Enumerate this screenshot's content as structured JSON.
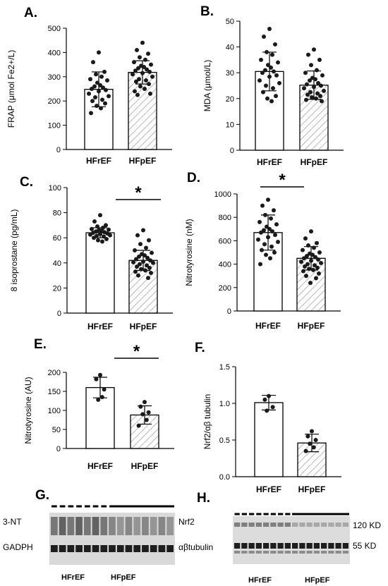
{
  "colors": {
    "ink": "#000000",
    "hatch": "#b8b8b8",
    "marker": "#1a1a1a"
  },
  "chart_data": [
    {
      "id": "A",
      "type": "bar",
      "panel_label": "A.",
      "categories": [
        "HFrEF",
        "HFpEF"
      ],
      "ylabel": "FRAP (μmol Fe2+/L)",
      "ylim": [
        0,
        500
      ],
      "yticks": [
        0,
        100,
        200,
        300,
        400,
        500
      ],
      "ytick_labels": [
        "0",
        "100",
        "200",
        "300",
        "400",
        "500"
      ],
      "series": [
        {
          "category": "HFrEF",
          "fill": "plain",
          "mean": 248,
          "sd": 72,
          "points": [
            400,
            360,
            320,
            310,
            300,
            290,
            285,
            275,
            265,
            260,
            255,
            250,
            245,
            240,
            230,
            220,
            215,
            205,
            200,
            190,
            180,
            170,
            150
          ]
        },
        {
          "category": "HFpEF",
          "fill": "hatch",
          "mean": 318,
          "sd": 48,
          "points": [
            440,
            410,
            395,
            380,
            370,
            360,
            350,
            345,
            340,
            335,
            330,
            325,
            320,
            315,
            310,
            300,
            290,
            285,
            280,
            270,
            260,
            250,
            240,
            230,
            225
          ]
        }
      ]
    },
    {
      "id": "B",
      "type": "bar",
      "panel_label": "B.",
      "categories": [
        "HFrEF",
        "HFpEF"
      ],
      "ylabel": "MDA (μmol/L)",
      "ylim": [
        0,
        50
      ],
      "yticks": [
        0,
        10,
        20,
        30,
        40,
        50
      ],
      "ytick_labels": [
        "0",
        "10",
        "20",
        "30",
        "40",
        "50"
      ],
      "series": [
        {
          "category": "HFrEF",
          "fill": "plain",
          "mean": 30.5,
          "sd": 7.5,
          "points": [
            47,
            44,
            41,
            38,
            37,
            35,
            34,
            33,
            32,
            31,
            30.5,
            30,
            29,
            28.5,
            27,
            26,
            25,
            24,
            22.5,
            21,
            20,
            19
          ]
        },
        {
          "category": "HFpEF",
          "fill": "hatch",
          "mean": 25.2,
          "sd": 5.5,
          "points": [
            39,
            37,
            35,
            33,
            31,
            30,
            29,
            28,
            27.5,
            27,
            26,
            25.5,
            25,
            24.5,
            24,
            23,
            22.5,
            22,
            21.5,
            21,
            20.5,
            20,
            19.5,
            19
          ]
        }
      ]
    },
    {
      "id": "C",
      "type": "bar",
      "panel_label": "C.",
      "categories": [
        "HFrEF",
        "HFpEF"
      ],
      "ylabel": "8 isoprostane (pg/mL)",
      "ylim": [
        0,
        100
      ],
      "yticks": [
        0,
        20,
        40,
        60,
        80,
        100
      ],
      "ytick_labels": [
        "0",
        "20",
        "40",
        "60",
        "80",
        "100"
      ],
      "significance": "*",
      "series": [
        {
          "category": "HFrEF",
          "fill": "plain",
          "mean": 64,
          "sd": 4,
          "points": [
            78,
            73,
            70,
            69,
            68,
            67,
            66.5,
            66,
            65.5,
            65,
            64.5,
            64,
            63.5,
            63,
            62.5,
            62,
            61.5,
            61,
            60,
            59,
            58,
            57
          ]
        },
        {
          "category": "HFpEF",
          "fill": "hatch",
          "mean": 42,
          "sd": 8,
          "points": [
            66,
            62,
            58,
            55,
            52,
            50,
            48,
            47,
            46,
            45,
            44,
            43,
            42,
            41,
            40.5,
            40,
            39,
            38,
            37,
            36,
            35,
            34,
            33,
            32,
            30,
            28
          ]
        }
      ]
    },
    {
      "id": "D",
      "type": "bar",
      "panel_label": "D.",
      "categories": [
        "HFrEF",
        "HFpEF"
      ],
      "ylabel": "Nitrotyrosine (nM)",
      "ylim": [
        0,
        1000
      ],
      "yticks": [
        0,
        200,
        400,
        600,
        800,
        1000
      ],
      "ytick_labels": [
        "0",
        "200",
        "400",
        "600",
        "800",
        "1000"
      ],
      "significance": "*",
      "series": [
        {
          "category": "HFrEF",
          "fill": "plain",
          "mean": 670,
          "sd": 150,
          "points": [
            950,
            900,
            860,
            820,
            790,
            760,
            740,
            720,
            700,
            690,
            680,
            670,
            650,
            630,
            610,
            590,
            570,
            550,
            520,
            500,
            480,
            450,
            400
          ]
        },
        {
          "category": "HFpEF",
          "fill": "hatch",
          "mean": 450,
          "sd": 100,
          "points": [
            680,
            620,
            580,
            560,
            540,
            520,
            500,
            490,
            480,
            470,
            460,
            450,
            440,
            430,
            420,
            410,
            400,
            390,
            380,
            370,
            360,
            350,
            340,
            320,
            300,
            280,
            240
          ]
        }
      ]
    },
    {
      "id": "E",
      "type": "bar",
      "panel_label": "E.",
      "categories": [
        "HFrEF",
        "HFpEF"
      ],
      "ylabel": "Nitrotyrosine (AU)",
      "ylim": [
        0,
        200
      ],
      "yticks": [
        0,
        50,
        100,
        150,
        200
      ],
      "ytick_labels": [
        "0",
        "50",
        "100",
        "150",
        "200"
      ],
      "significance": "*",
      "series": [
        {
          "category": "HFrEF",
          "fill": "plain",
          "mean": 160,
          "sd": 27,
          "points": [
            193,
            182,
            155,
            128,
            135
          ]
        },
        {
          "category": "HFpEF",
          "fill": "hatch",
          "mean": 88,
          "sd": 24,
          "points": [
            122,
            110,
            95,
            90,
            75,
            60
          ]
        }
      ]
    },
    {
      "id": "F",
      "type": "bar",
      "panel_label": "F.",
      "categories": [
        "HFrEF",
        "HFpEF"
      ],
      "ylabel": "Nrf2/αβ tubulin",
      "ylim": [
        0,
        1.5
      ],
      "yticks": [
        0,
        0.5,
        1.0,
        1.5
      ],
      "ytick_labels": [
        "0.0",
        "0.5",
        "1.0",
        "1.5"
      ],
      "series": [
        {
          "category": "HFrEF",
          "fill": "plain",
          "mean": 1.01,
          "sd": 0.1,
          "points": [
            1.1,
            1.05,
            0.95,
            0.9
          ]
        },
        {
          "category": "HFpEF",
          "fill": "hatch",
          "mean": 0.46,
          "sd": 0.12,
          "points": [
            0.62,
            0.55,
            0.5,
            0.45,
            0.4,
            0.35
          ]
        }
      ]
    }
  ],
  "blots": {
    "G": {
      "panel_label": "G.",
      "left_labels": [
        "3-NT",
        "GADPH"
      ],
      "right_labels": [
        "Nrf2",
        "αβtubulin"
      ],
      "groups": [
        "HFrEF",
        "HFpEF"
      ],
      "lanes_group1": 7,
      "lanes_group2": 8
    },
    "H": {
      "panel_label": "H.",
      "right_labels": [
        "120 KD",
        "55 KD"
      ],
      "groups": [
        "HFrEF",
        "HFpEF"
      ],
      "lanes_group1": 8,
      "lanes_group2": 8
    }
  }
}
